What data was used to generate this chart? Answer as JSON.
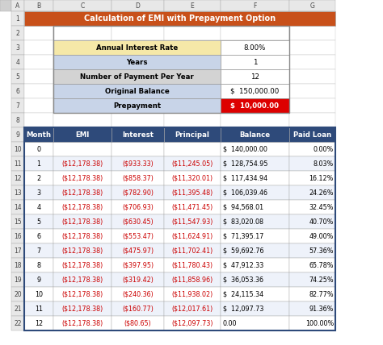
{
  "title": "Calculation of EMI with Prepayment Option",
  "title_bg": "#C8501A",
  "title_color": "#FFFFFF",
  "header_labels": [
    "Month",
    "EMI",
    "Interest",
    "Principal",
    "Balance",
    "Paid Loan"
  ],
  "header_bg": "#2E4A7A",
  "header_color": "#FFFFFF",
  "input_labels": [
    "Annual Interest Rate",
    "Years",
    "Number of Payment Per Year",
    "Original Balance",
    "Prepayment"
  ],
  "input_bg_colors": [
    "#F5E8A8",
    "#C8D4E8",
    "#D3D3D3",
    "#C8D4E8",
    "#C8D4E8"
  ],
  "input_values": [
    "8.00%",
    "1",
    "12",
    "$  150,000.00",
    "$  10,000.00"
  ],
  "input_value_bg": [
    "#FFFFFF",
    "#FFFFFF",
    "#FFFFFF",
    "#FFFFFF",
    "#DD0000"
  ],
  "input_value_color": [
    "#000000",
    "#000000",
    "#000000",
    "#000000",
    "#FFFFFF"
  ],
  "table_data": [
    [
      "0",
      "",
      "",
      "",
      "$  140,000.00",
      "0.00%"
    ],
    [
      "1",
      "($12,178.38)",
      "($933.33)",
      "($11,245.05)",
      "$  128,754.95",
      "8.03%"
    ],
    [
      "2",
      "($12,178.38)",
      "($858.37)",
      "($11,320.01)",
      "$  117,434.94",
      "16.12%"
    ],
    [
      "3",
      "($12,178.38)",
      "($782.90)",
      "($11,395.48)",
      "$  106,039.46",
      "24.26%"
    ],
    [
      "4",
      "($12,178.38)",
      "($706.93)",
      "($11,471.45)",
      "$  94,568.01",
      "32.45%"
    ],
    [
      "5",
      "($12,178.38)",
      "($630.45)",
      "($11,547.93)",
      "$  83,020.08",
      "40.70%"
    ],
    [
      "6",
      "($12,178.38)",
      "($553.47)",
      "($11,624.91)",
      "$  71,395.17",
      "49.00%"
    ],
    [
      "7",
      "($12,178.38)",
      "($475.97)",
      "($11,702.41)",
      "$  59,692.76",
      "57.36%"
    ],
    [
      "8",
      "($12,178.38)",
      "($397.95)",
      "($11,780.43)",
      "$  47,912.33",
      "65.78%"
    ],
    [
      "9",
      "($12,178.38)",
      "($319.42)",
      "($11,858.96)",
      "$  36,053.36",
      "74.25%"
    ],
    [
      "10",
      "($12,178.38)",
      "($240.36)",
      "($11,938.02)",
      "$  24,115.34",
      "82.77%"
    ],
    [
      "11",
      "($12,178.38)",
      "($160.77)",
      "($12,017.61)",
      "$  12,097.73",
      "91.36%"
    ],
    [
      "12",
      "($12,178.38)",
      "($80.65)",
      "($12,097.73)",
      "0.00",
      "100.00%"
    ]
  ],
  "red_text_cols": [
    1,
    2,
    3
  ],
  "alt_row_colors": [
    "#FFFFFF",
    "#EEF2FA"
  ],
  "outer_border_color": "#2E4A7A",
  "bg_color": "#FFFFFF",
  "col_header_bg": "#E8E8E8",
  "col_header_border": "#AAAAAA",
  "row_num_bg": "#E8E8E8",
  "row_num_border": "#AAAAAA",
  "corner_bg": "#D0D0D0",
  "col_letters": [
    "A",
    "B",
    "C",
    "D",
    "E",
    "F",
    "G"
  ],
  "row_numbers": [
    "1",
    "2",
    "3",
    "4",
    "5",
    "6",
    "7",
    "8",
    "9",
    "10",
    "11",
    "12",
    "13",
    "14",
    "15",
    "16",
    "17",
    "18",
    "19",
    "20",
    "21",
    "22"
  ]
}
